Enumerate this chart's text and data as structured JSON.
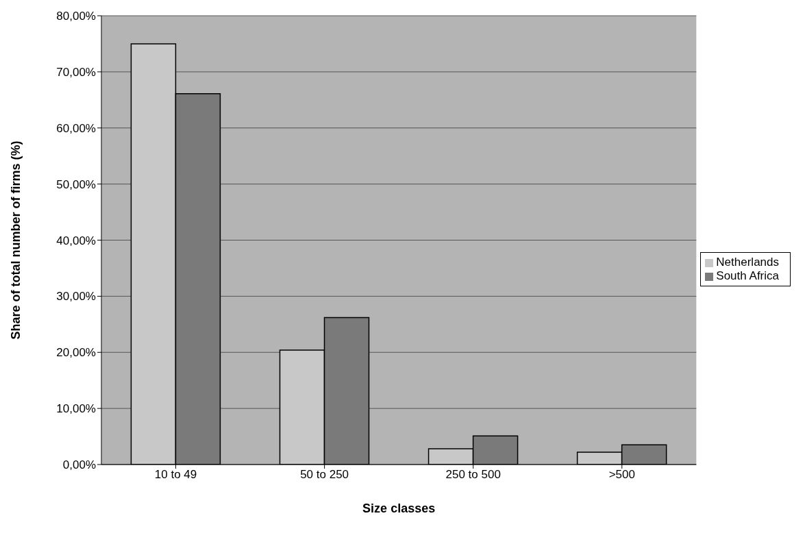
{
  "chart_data": {
    "type": "bar",
    "xlabel": "Size classes",
    "ylabel": "Share of total number of firms (%)",
    "categories": [
      "10 to 49",
      "50 to 250",
      "250 to 500",
      ">500"
    ],
    "series": [
      {
        "name": "Netherlands",
        "color": "#c8c8c8",
        "values": [
          75.0,
          20.4,
          2.8,
          2.2
        ]
      },
      {
        "name": "South Africa",
        "color": "#7a7a7a",
        "values": [
          66.1,
          26.2,
          5.1,
          3.5
        ]
      }
    ],
    "ylim": [
      0,
      80
    ],
    "yticks": [
      {
        "value": 0,
        "label": "0,00%"
      },
      {
        "value": 10,
        "label": "10,00%"
      },
      {
        "value": 20,
        "label": "20,00%"
      },
      {
        "value": 30,
        "label": "30,00%"
      },
      {
        "value": 40,
        "label": "40,00%"
      },
      {
        "value": 50,
        "label": "50,00%"
      },
      {
        "value": 60,
        "label": "60,00%"
      },
      {
        "value": 70,
        "label": "70,00%"
      },
      {
        "value": 80,
        "label": "80,00%"
      }
    ],
    "grid": "y",
    "legend": "right"
  }
}
